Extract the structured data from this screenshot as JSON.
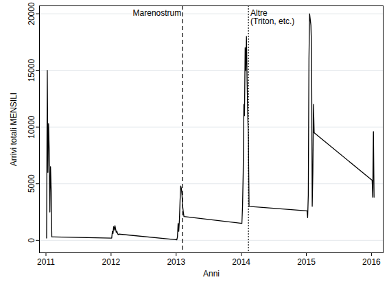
{
  "chart_data": {
    "type": "line",
    "x_label": "Anni",
    "y_label": "Arrivi totali MENSILI",
    "color": "#000000",
    "x": [
      2011.01,
      2011.02,
      2011.03,
      2011.04,
      2011.05,
      2011.06,
      2011.07,
      2011.08,
      2011.09,
      2011.1,
      2011.11,
      2011.12,
      2012.01,
      2012.02,
      2012.03,
      2012.04,
      2012.05,
      2012.06,
      2012.07,
      2012.08,
      2012.09,
      2012.1,
      2012.11,
      2012.12,
      2013.01,
      2013.02,
      2013.03,
      2013.04,
      2013.05,
      2013.06,
      2013.07,
      2013.08,
      2013.09,
      2013.1,
      2013.11,
      2013.12,
      2014.01,
      2014.02,
      2014.03,
      2014.04,
      2014.05,
      2014.06,
      2014.07,
      2014.08,
      2014.09,
      2014.1,
      2014.11,
      2014.12,
      2015.01,
      2015.02,
      2015.03,
      2015.04,
      2015.05,
      2015.06,
      2015.07,
      2015.08,
      2015.09,
      2015.1,
      2015.11,
      2015.12,
      2016.01,
      2016.02,
      2016.03,
      2016.04
    ],
    "values": [
      200,
      15000,
      6000,
      10300,
      8000,
      2500,
      6500,
      4500,
      300,
      300,
      300,
      300,
      200,
      800,
      600,
      1200,
      900,
      1300,
      1000,
      700,
      800,
      600,
      500,
      550,
      50,
      300,
      1500,
      800,
      1800,
      3500,
      4800,
      4600,
      4000,
      3000,
      2500,
      2100,
      1500,
      3000,
      6000,
      12000,
      11000,
      17000,
      15000,
      18000,
      14000,
      11000,
      9000,
      3000,
      2600,
      2000,
      4000,
      16000,
      20000,
      19500,
      19000,
      17000,
      3000,
      6000,
      12000,
      9500,
      5300,
      3800,
      9600,
      3800
    ],
    "xlim": [
      2010.9,
      2016.18
    ],
    "xticks": [
      2011,
      2012,
      2013,
      2014,
      2015,
      2016
    ],
    "ylim": [
      -1100,
      20700
    ],
    "yticks": [
      0,
      5000,
      10000,
      15000,
      20000
    ],
    "grid": true,
    "annotations": [
      {
        "x": 2013.1,
        "text": "Marenostrum",
        "line_style": "dashed"
      },
      {
        "x": 2014.11,
        "text": "Altre\n(Triton, etc.)",
        "line_style": "dotted"
      }
    ]
  }
}
